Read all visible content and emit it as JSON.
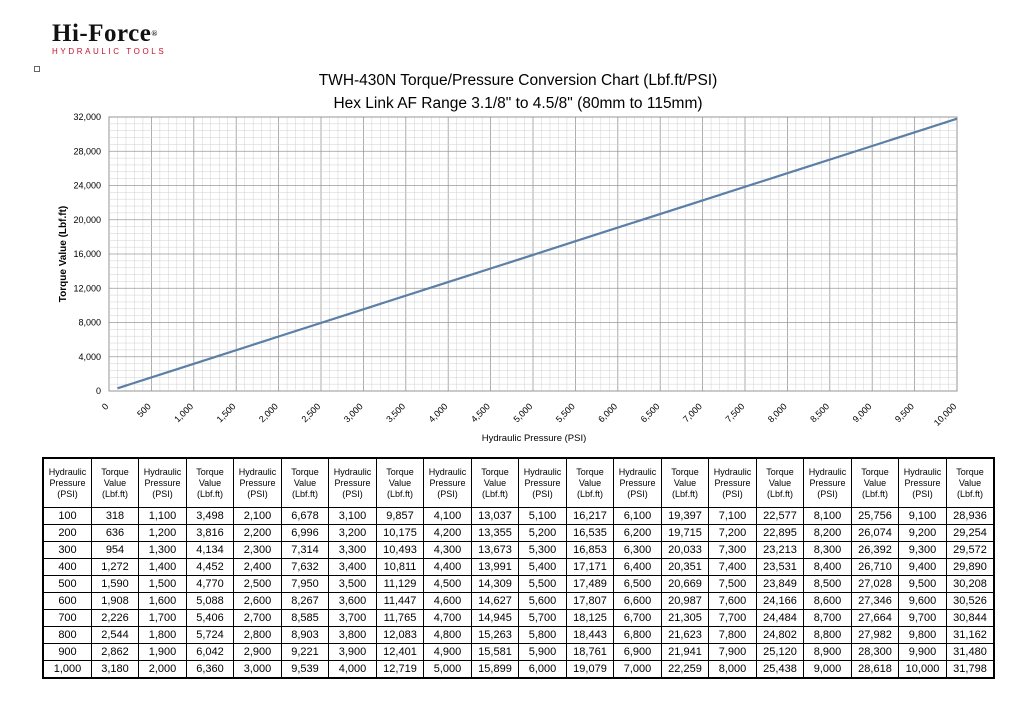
{
  "logo": {
    "brand": "Hi-Force",
    "registered": "®",
    "tagline": "HYDRAULIC TOOLS"
  },
  "chart_data": {
    "type": "line",
    "title": "TWH-430N Torque/Pressure Conversion Chart (Lbf.ft/PSI)",
    "subtitle": "Hex Link AF Range 3.1/8\" to 4.5/8\" (80mm to 115mm)",
    "xlabel": "Hydraulic Pressure (PSI)",
    "ylabel": "Torque Value (Lbf.ft)",
    "xlim": [
      0,
      10000
    ],
    "ylim": [
      0,
      32000
    ],
    "x_ticks": [
      "0",
      "500",
      "1,000",
      "1,500",
      "2,000",
      "2,500",
      "3,000",
      "3,500",
      "4,000",
      "4,500",
      "5,000",
      "5,500",
      "6,000",
      "6,500",
      "7,000",
      "7,500",
      "8,000",
      "8,500",
      "9,000",
      "9,500",
      "10,000"
    ],
    "y_ticks": [
      "0",
      "4,000",
      "8,000",
      "12,000",
      "16,000",
      "20,000",
      "24,000",
      "28,000",
      "32,000"
    ],
    "grid": true,
    "line_color": "#5b7fa6",
    "series": [
      {
        "x": [
          100,
          1000,
          2000,
          3000,
          4000,
          5000,
          6000,
          7000,
          8000,
          9000,
          10000
        ],
        "y": [
          318,
          3180,
          6360,
          9539,
          12719,
          15899,
          19079,
          22259,
          25438,
          28618,
          31798
        ]
      }
    ]
  },
  "table": {
    "headers": [
      "Hydraulic\nPressure\n(PSI)",
      "Torque\nValue\n(Lbf.ft)",
      "Hydraulic\nPressure\n(PSI)",
      "Torque\nValue\n(Lbf.ft)",
      "Hydraulic\nPressure\n(PSI)",
      "Torque\nValue\n(Lbf.ft)",
      "Hydraulic\nPressure\n(PSI)",
      "Torque\nValue\n(Lbf.ft)",
      "Hydraulic\nPressure\n(PSI)",
      "Torque\nValue\n(Lbf.ft)",
      "Hydraulic\nPressure\n(PSI)",
      "Torque\nValue\n(Lbf.ft)",
      "Hydraulic\nPressure\n(PSI)",
      "Torque\nValue\n(Lbf.ft)",
      "Hydraulic\nPressure\n(PSI)",
      "Torque\nValue\n(Lbf.ft)",
      "Hydraulic\nPressure\n(PSI)",
      "Torque\nValue\n(Lbf.ft)",
      "Hydraulic\nPressure\n(PSI)",
      "Torque\nValue\n(Lbf.ft)"
    ],
    "rows": [
      [
        "100",
        "318",
        "1,100",
        "3,498",
        "2,100",
        "6,678",
        "3,100",
        "9,857",
        "4,100",
        "13,037",
        "5,100",
        "16,217",
        "6,100",
        "19,397",
        "7,100",
        "22,577",
        "8,100",
        "25,756",
        "9,100",
        "28,936"
      ],
      [
        "200",
        "636",
        "1,200",
        "3,816",
        "2,200",
        "6,996",
        "3,200",
        "10,175",
        "4,200",
        "13,355",
        "5,200",
        "16,535",
        "6,200",
        "19,715",
        "7,200",
        "22,895",
        "8,200",
        "26,074",
        "9,200",
        "29,254"
      ],
      [
        "300",
        "954",
        "1,300",
        "4,134",
        "2,300",
        "7,314",
        "3,300",
        "10,493",
        "4,300",
        "13,673",
        "5,300",
        "16,853",
        "6,300",
        "20,033",
        "7,300",
        "23,213",
        "8,300",
        "26,392",
        "9,300",
        "29,572"
      ],
      [
        "400",
        "1,272",
        "1,400",
        "4,452",
        "2,400",
        "7,632",
        "3,400",
        "10,811",
        "4,400",
        "13,991",
        "5,400",
        "17,171",
        "6,400",
        "20,351",
        "7,400",
        "23,531",
        "8,400",
        "26,710",
        "9,400",
        "29,890"
      ],
      [
        "500",
        "1,590",
        "1,500",
        "4,770",
        "2,500",
        "7,950",
        "3,500",
        "11,129",
        "4,500",
        "14,309",
        "5,500",
        "17,489",
        "6,500",
        "20,669",
        "7,500",
        "23,849",
        "8,500",
        "27,028",
        "9,500",
        "30,208"
      ],
      [
        "600",
        "1,908",
        "1,600",
        "5,088",
        "2,600",
        "8,267",
        "3,600",
        "11,447",
        "4,600",
        "14,627",
        "5,600",
        "17,807",
        "6,600",
        "20,987",
        "7,600",
        "24,166",
        "8,600",
        "27,346",
        "9,600",
        "30,526"
      ],
      [
        "700",
        "2,226",
        "1,700",
        "5,406",
        "2,700",
        "8,585",
        "3,700",
        "11,765",
        "4,700",
        "14,945",
        "5,700",
        "18,125",
        "6,700",
        "21,305",
        "7,700",
        "24,484",
        "8,700",
        "27,664",
        "9,700",
        "30,844"
      ],
      [
        "800",
        "2,544",
        "1,800",
        "5,724",
        "2,800",
        "8,903",
        "3,800",
        "12,083",
        "4,800",
        "15,263",
        "5,800",
        "18,443",
        "6,800",
        "21,623",
        "7,800",
        "24,802",
        "8,800",
        "27,982",
        "9,800",
        "31,162"
      ],
      [
        "900",
        "2,862",
        "1,900",
        "6,042",
        "2,900",
        "9,221",
        "3,900",
        "12,401",
        "4,900",
        "15,581",
        "5,900",
        "18,761",
        "6,900",
        "21,941",
        "7,900",
        "25,120",
        "8,900",
        "28,300",
        "9,900",
        "31,480"
      ],
      [
        "1,000",
        "3,180",
        "2,000",
        "6,360",
        "3,000",
        "9,539",
        "4,000",
        "12,719",
        "5,000",
        "15,899",
        "6,000",
        "19,079",
        "7,000",
        "22,259",
        "8,000",
        "25,438",
        "9,000",
        "28,618",
        "10,000",
        "31,798"
      ]
    ]
  }
}
